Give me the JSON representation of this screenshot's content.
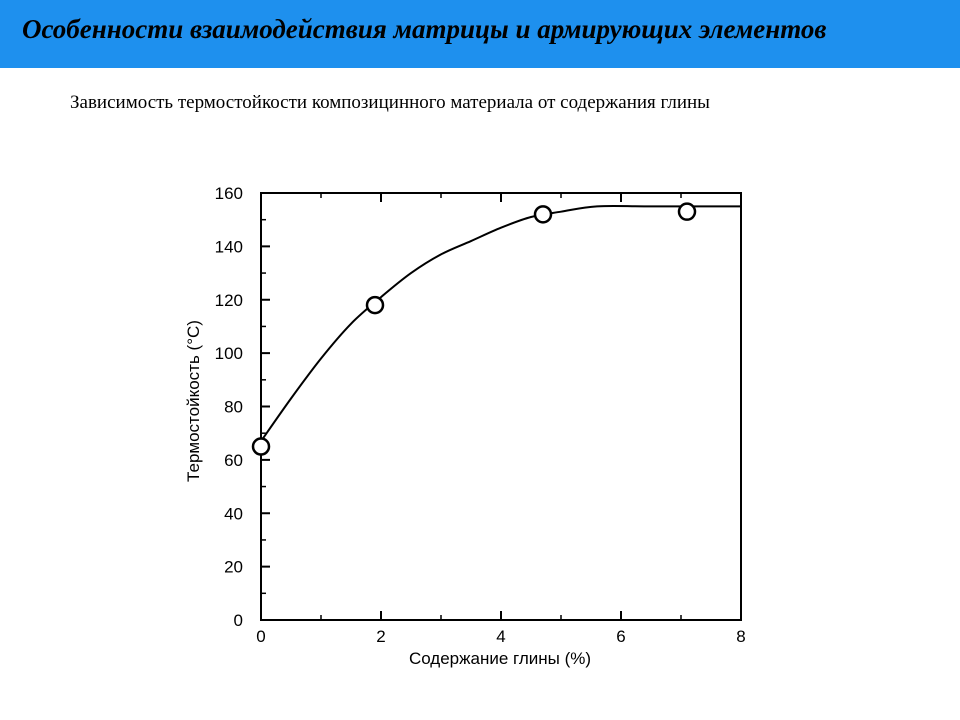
{
  "slide": {
    "title": "Особенности взаимодействия  матрицы и армирующих элементов",
    "subtitle": "Зависимость термостойкости композицинного материала от содержания глины"
  },
  "chart_data": {
    "type": "line",
    "xlabel": "Содержание глины (%)",
    "ylabel": "Термостойкость (°C)",
    "xlim": [
      0,
      8
    ],
    "ylim": [
      0,
      160
    ],
    "x_ticks": [
      "0",
      "2",
      "4",
      "6",
      "8"
    ],
    "y_ticks": [
      "0",
      "20",
      "40",
      "60",
      "80",
      "100",
      "120",
      "140",
      "160"
    ],
    "grid": false,
    "legend": "none",
    "series": [
      {
        "points": [
          {
            "x": 0,
            "y": 65
          },
          {
            "x": 1.9,
            "y": 118
          },
          {
            "x": 4.7,
            "y": 152
          },
          {
            "x": 7.1,
            "y": 153
          }
        ],
        "curve": [
          [
            0,
            67
          ],
          [
            0.5,
            83
          ],
          [
            1.0,
            98
          ],
          [
            1.5,
            111
          ],
          [
            2.0,
            121
          ],
          [
            2.5,
            130
          ],
          [
            3.0,
            137
          ],
          [
            3.5,
            142
          ],
          [
            4.0,
            147
          ],
          [
            4.5,
            151
          ],
          [
            5.0,
            153
          ],
          [
            5.6,
            155
          ],
          [
            6.5,
            155
          ],
          [
            8.0,
            155
          ]
        ]
      }
    ],
    "colors": {
      "line": "#000000",
      "marker_fill": "#ffffff"
    }
  }
}
